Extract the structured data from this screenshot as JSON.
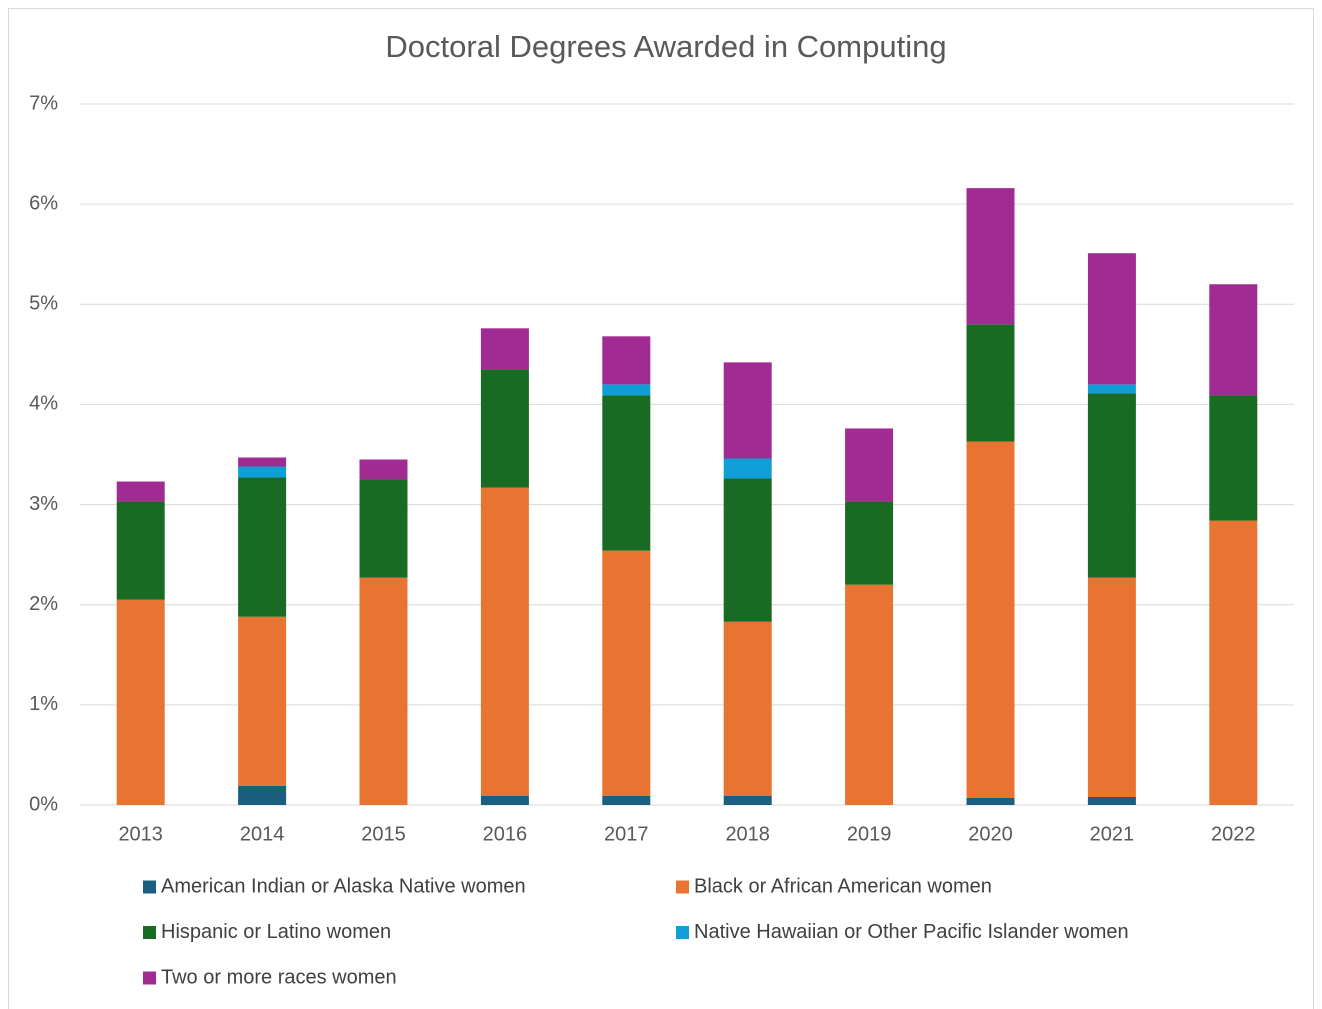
{
  "chart_data": {
    "type": "stacked_bar",
    "title": "Doctoral Degrees Awarded in Computing",
    "categories": [
      "2013",
      "2014",
      "2015",
      "2016",
      "2017",
      "2018",
      "2019",
      "2020",
      "2021",
      "2022"
    ],
    "series": [
      {
        "name": "American Indian or Alaska Native women",
        "color": "#1a5e80",
        "values": [
          0,
          0.19,
          0,
          0.09,
          0.09,
          0.09,
          0,
          0.07,
          0.08,
          0
        ]
      },
      {
        "name": "Black or African American women",
        "color": "#e97432",
        "values": [
          2.05,
          1.69,
          2.27,
          3.08,
          2.45,
          1.74,
          2.2,
          3.56,
          2.19,
          2.84
        ]
      },
      {
        "name": "Hispanic or Latino women",
        "color": "#196b24",
        "values": [
          0.98,
          1.39,
          0.98,
          1.18,
          1.55,
          1.43,
          0.83,
          1.17,
          1.84,
          1.25
        ]
      },
      {
        "name": "Native Hawaiian or Other Pacific Islander women",
        "color": "#0f9ed5",
        "values": [
          0,
          0.11,
          0,
          0,
          0.11,
          0.2,
          0,
          0,
          0.09,
          0
        ]
      },
      {
        "name": "Two or more races women",
        "color": "#a02b93",
        "values": [
          0.2,
          0.09,
          0.2,
          0.41,
          0.48,
          0.96,
          0.73,
          1.36,
          1.31,
          1.11
        ]
      }
    ],
    "ylim": [
      0,
      7
    ],
    "yticks": [
      {
        "value": 0,
        "label": "0%"
      },
      {
        "value": 1,
        "label": "1%"
      },
      {
        "value": 2,
        "label": "2%"
      },
      {
        "value": 3,
        "label": "3%"
      },
      {
        "value": 4,
        "label": "4%"
      },
      {
        "value": 5,
        "label": "5%"
      },
      {
        "value": 6,
        "label": "6%"
      },
      {
        "value": 7,
        "label": "7%"
      }
    ],
    "grid": true,
    "legend": "bottom"
  }
}
